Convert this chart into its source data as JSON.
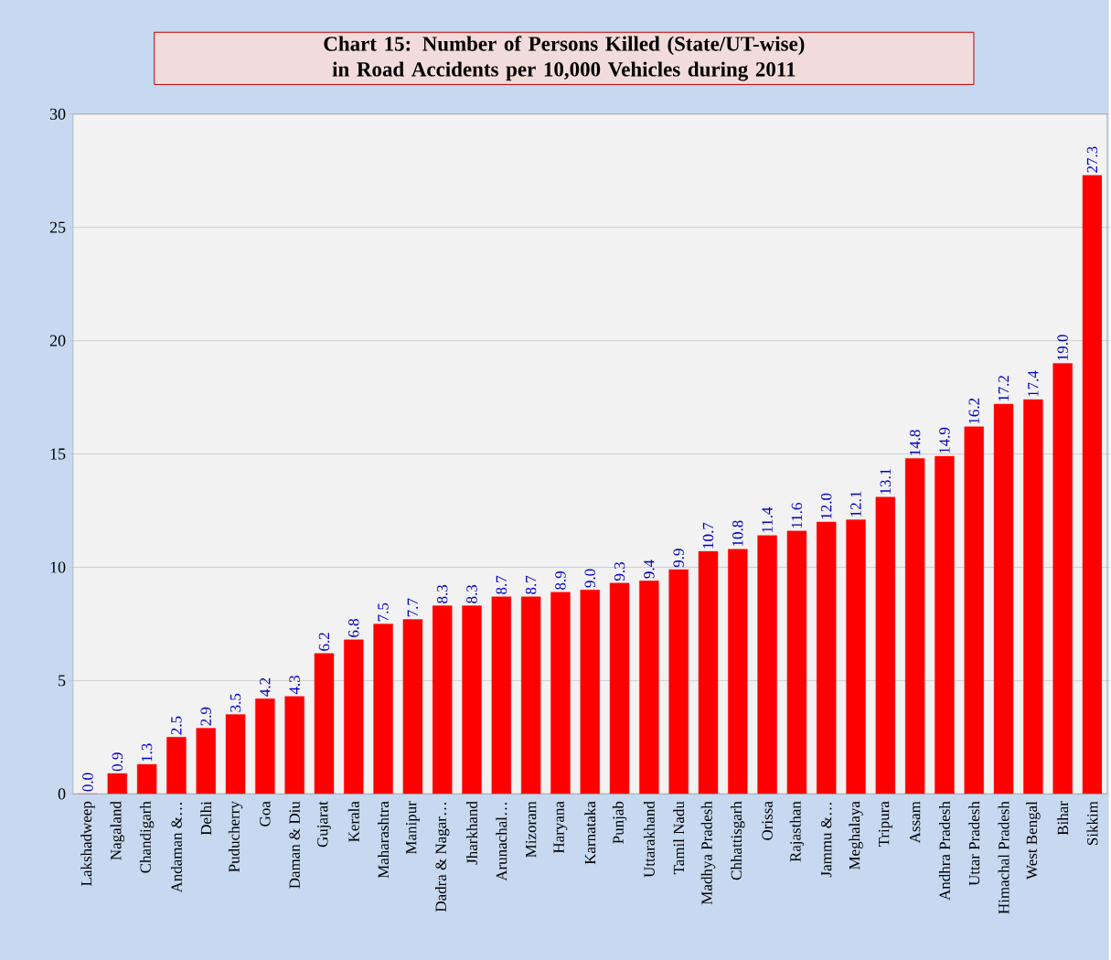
{
  "chart_data": {
    "type": "bar",
    "title": "Chart 15:  Number of Persons Killed (State/UT-wise) in Road Accidents per 10,000 Vehicles during 2011",
    "categories": [
      "Lakshadweep",
      "Nagaland",
      "Chandigarh",
      "Andaman &…",
      "Delhi",
      "Puducherry",
      "Goa",
      "Daman & Diu",
      "Gujarat",
      "Kerala",
      "Maharashtra",
      "Manipur",
      "Dadra & Nagar…",
      "Jharkhand",
      "Arunachal…",
      "Mizoram",
      "Haryana",
      "Karnataka",
      "Punjab",
      "Uttarakhand",
      "Tamil Nadu",
      "Madhya Pradesh",
      "Chhattisgarh",
      "Orissa",
      "Rajasthan",
      "Jammu &…",
      "Meghalaya",
      "Tripura",
      "Assam",
      "Andhra Pradesh",
      "Uttar Pradesh",
      "Himachal Pradesh",
      "West Bengal",
      "Bihar",
      "Sikkim"
    ],
    "values": [
      0.0,
      0.9,
      1.3,
      2.5,
      2.9,
      3.5,
      4.2,
      4.3,
      6.2,
      6.8,
      7.5,
      7.7,
      8.3,
      8.3,
      8.7,
      8.7,
      8.9,
      9.0,
      9.3,
      9.4,
      9.9,
      10.7,
      10.8,
      11.4,
      11.6,
      12.0,
      12.1,
      13.1,
      14.8,
      14.9,
      16.2,
      17.2,
      17.4,
      19.0,
      27.3
    ],
    "value_labels": [
      "0.0",
      "0.9",
      "1.3",
      "2.5",
      "2.9",
      "3.5",
      "4.2",
      "4.3",
      "6.2",
      "6.8",
      "7.5",
      "7.7",
      "8.3",
      "8.3",
      "8.7",
      "8.7",
      "8.9",
      "9.0",
      "9.3",
      "9.4",
      "9.9",
      "10.7",
      "10.8",
      "11.4",
      "11.6",
      "12.0",
      "12.1",
      "13.1",
      "14.8",
      "14.9",
      "16.2",
      "17.2",
      "17.4",
      "19.0",
      "27.3"
    ],
    "color": "#ff0000",
    "ylim": [
      0,
      30
    ],
    "yticks": [
      0,
      5,
      10,
      15,
      20,
      25,
      30
    ],
    "grid": "y"
  }
}
